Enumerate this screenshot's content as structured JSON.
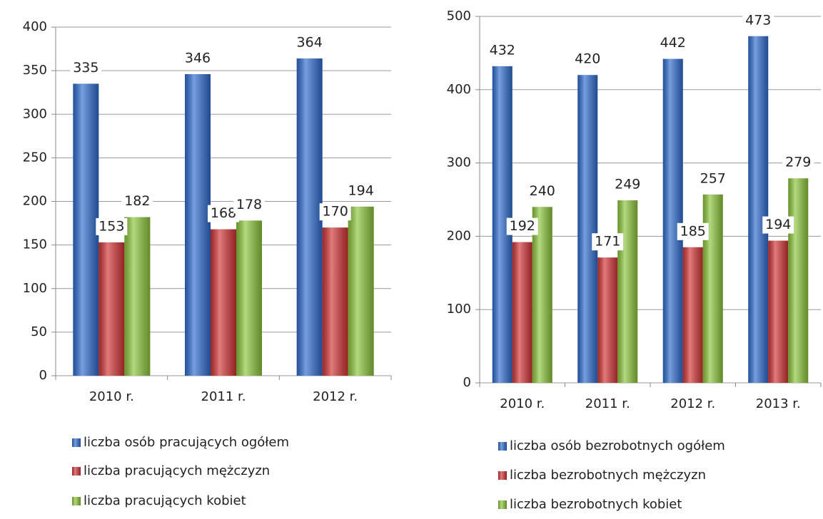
{
  "chart_data": [
    {
      "type": "bar",
      "categories": [
        "2010 r.",
        "2011 r.",
        "2012 r."
      ],
      "series": [
        {
          "name": "liczba osób pracujących ogółem",
          "color": "#2e6ccf",
          "values": [
            335,
            346,
            364
          ]
        },
        {
          "name": "liczba pracujących mężczyzn",
          "color": "#d23434",
          "values": [
            153,
            168,
            170
          ]
        },
        {
          "name": "liczba pracujących kobiet",
          "color": "#8cc63c",
          "values": [
            182,
            178,
            194
          ]
        }
      ],
      "ylim": [
        0,
        400
      ],
      "yticks": [
        0,
        50,
        100,
        150,
        200,
        250,
        300,
        350,
        400
      ],
      "grid": true,
      "legend": "bottom"
    },
    {
      "type": "bar",
      "categories": [
        "2010 r.",
        "2011 r.",
        "2012 r.",
        "2013 r."
      ],
      "series": [
        {
          "name": "liczba osób bezrobotnych ogółem",
          "color": "#2e6ccf",
          "values": [
            432,
            420,
            442,
            473
          ]
        },
        {
          "name": "liczba bezrobotnych mężczyzn",
          "color": "#d23434",
          "values": [
            192,
            171,
            185,
            194
          ]
        },
        {
          "name": "liczba bezrobotnych kobiet",
          "color": "#8cc63c",
          "values": [
            240,
            249,
            257,
            279
          ]
        }
      ],
      "ylim": [
        0,
        500
      ],
      "yticks": [
        0,
        100,
        200,
        300,
        400,
        500
      ],
      "grid": true,
      "legend": "bottom"
    }
  ]
}
